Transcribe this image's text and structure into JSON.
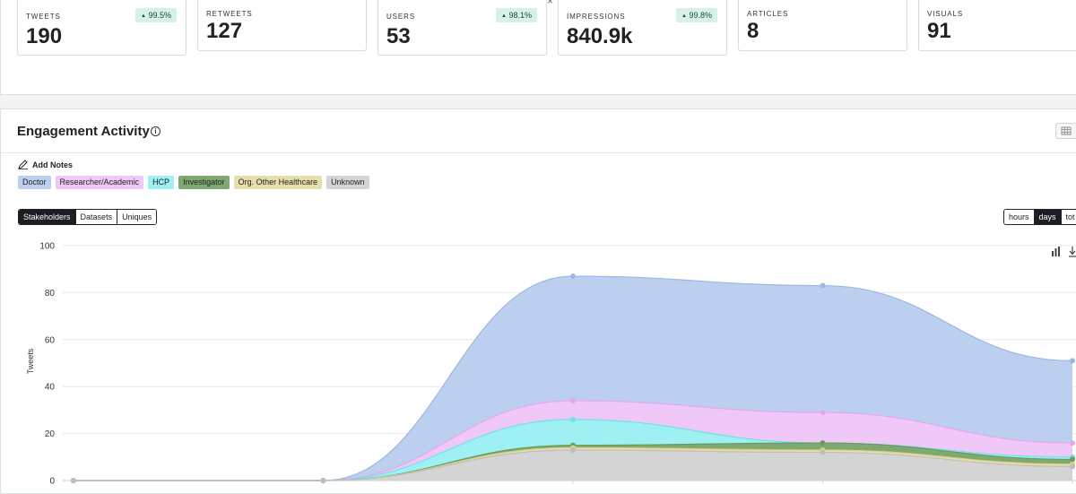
{
  "stats": [
    {
      "label": "TWEETS",
      "value": "190",
      "badge": "99.5%"
    },
    {
      "label": "RETWEETS",
      "value": "127",
      "badge": null
    },
    {
      "label": "USERS",
      "value": "53",
      "badge": "98.1%"
    },
    {
      "label": "IMPRESSIONS",
      "value": "840.9k",
      "badge": "99.8%"
    },
    {
      "label": "ARTICLES",
      "value": "8",
      "badge": null
    },
    {
      "label": "VISUALS",
      "value": "91",
      "badge": null
    }
  ],
  "close_glyph": "×",
  "engagement": {
    "title": "Engagement Activity",
    "info_glyph": "i",
    "add_notes": "Add Notes"
  },
  "legend": [
    {
      "label": "Doctor",
      "color": "#bccfee"
    },
    {
      "label": "Researcher/Academic",
      "color": "#f0c8f7"
    },
    {
      "label": "HCP",
      "color": "#9ef0f2"
    },
    {
      "label": "Investigator",
      "color": "#7fa970"
    },
    {
      "label": "Org. Other Healthcare",
      "color": "#e6dfac"
    },
    {
      "label": "Unknown",
      "color": "#d4d4d4"
    }
  ],
  "view_tabs": {
    "stakeholders": "Stakeholders",
    "datasets": "Datasets",
    "uniques": "Uniques"
  },
  "time_tabs": {
    "hours": "hours",
    "days": "days",
    "total": "tot"
  },
  "chart_data": {
    "type": "area",
    "ylabel": "Tweets",
    "ylim": [
      0,
      100
    ],
    "yticks": [
      0,
      20,
      40,
      60,
      80,
      100
    ],
    "x": [
      0,
      1,
      2,
      3,
      4
    ],
    "stacked_tops": [
      {
        "name": "Doctor",
        "color": "#bccfee",
        "edge": "#9db6e4",
        "values": [
          0,
          0,
          87,
          83,
          51
        ]
      },
      {
        "name": "Researcher/Academic",
        "color": "#f0c8f7",
        "edge": "#e5a6f0",
        "values": [
          0,
          0,
          34,
          29,
          16
        ]
      },
      {
        "name": "HCP",
        "color": "#9ef0f2",
        "edge": "#6fe3e8",
        "values": [
          0,
          0,
          26,
          16,
          10
        ]
      },
      {
        "name": "Investigator",
        "color": "#7fa970",
        "edge": "#6a9a5c",
        "values": [
          0,
          0,
          15,
          16,
          9
        ]
      },
      {
        "name": "Org. Other Healthcare",
        "color": "#e6dfac",
        "edge": "#d8cf8a",
        "values": [
          0,
          0,
          14,
          13,
          7
        ]
      },
      {
        "name": "Unknown",
        "color": "#d4d4d4",
        "edge": "#bdbdbd",
        "values": [
          0,
          0,
          13,
          12,
          6
        ]
      }
    ]
  }
}
